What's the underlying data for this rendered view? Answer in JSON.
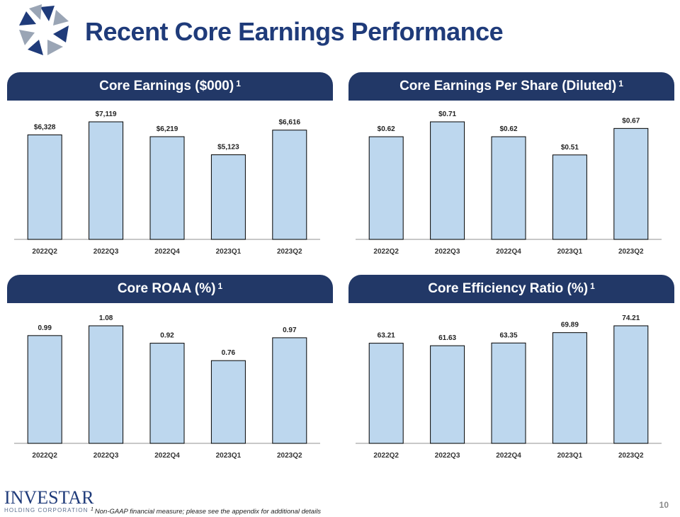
{
  "header": {
    "title": "Recent Core Earnings Performance"
  },
  "brand": {
    "name": "INVESTAR",
    "subtitle": "HOLDING CORPORATION",
    "logo_icon": "star-logo-icon",
    "colors": {
      "navy": "#1f3b7a",
      "bar": "#bdd7ee",
      "axis": "#a6a6a6"
    }
  },
  "footnote": {
    "marker": "1",
    "text": "Non-GAAP financial measure; please see the appendix for additional details"
  },
  "page_number": "10",
  "chart_data": [
    {
      "type": "bar",
      "title": "Core Earnings ($000)",
      "title_sup": "1",
      "categories": [
        "2022Q2",
        "2022Q3",
        "2022Q4",
        "2023Q1",
        "2023Q2"
      ],
      "values": [
        6328,
        7119,
        6219,
        5123,
        6616
      ],
      "labels": [
        "$6,328",
        "$7,119",
        "$6,219",
        "$5,123",
        "$6,616"
      ],
      "ylim": [
        0,
        7119
      ],
      "xlabel": "",
      "ylabel": ""
    },
    {
      "type": "bar",
      "title": "Core Earnings Per Share (Diluted)",
      "title_sup": "1",
      "categories": [
        "2022Q2",
        "2022Q3",
        "2022Q4",
        "2023Q1",
        "2023Q2"
      ],
      "values": [
        0.62,
        0.71,
        0.62,
        0.51,
        0.67
      ],
      "labels": [
        "$0.62",
        "$0.71",
        "$0.62",
        "$0.51",
        "$0.67"
      ],
      "ylim": [
        0,
        0.71
      ],
      "xlabel": "",
      "ylabel": ""
    },
    {
      "type": "bar",
      "title": "Core ROAA (%)",
      "title_sup": "1",
      "categories": [
        "2022Q2",
        "2022Q3",
        "2022Q4",
        "2023Q1",
        "2023Q2"
      ],
      "values": [
        0.99,
        1.08,
        0.92,
        0.76,
        0.97
      ],
      "labels": [
        "0.99",
        "1.08",
        "0.92",
        "0.76",
        "0.97"
      ],
      "ylim": [
        0,
        1.08
      ],
      "xlabel": "",
      "ylabel": ""
    },
    {
      "type": "bar",
      "title": "Core Efficiency Ratio (%)",
      "title_sup": "1",
      "categories": [
        "2022Q2",
        "2022Q3",
        "2022Q4",
        "2023Q1",
        "2023Q2"
      ],
      "values": [
        63.21,
        61.63,
        63.35,
        69.89,
        74.21
      ],
      "labels": [
        "63.21",
        "61.63",
        "63.35",
        "69.89",
        "74.21"
      ],
      "ylim": [
        0,
        74.21
      ],
      "xlabel": "",
      "ylabel": ""
    }
  ]
}
